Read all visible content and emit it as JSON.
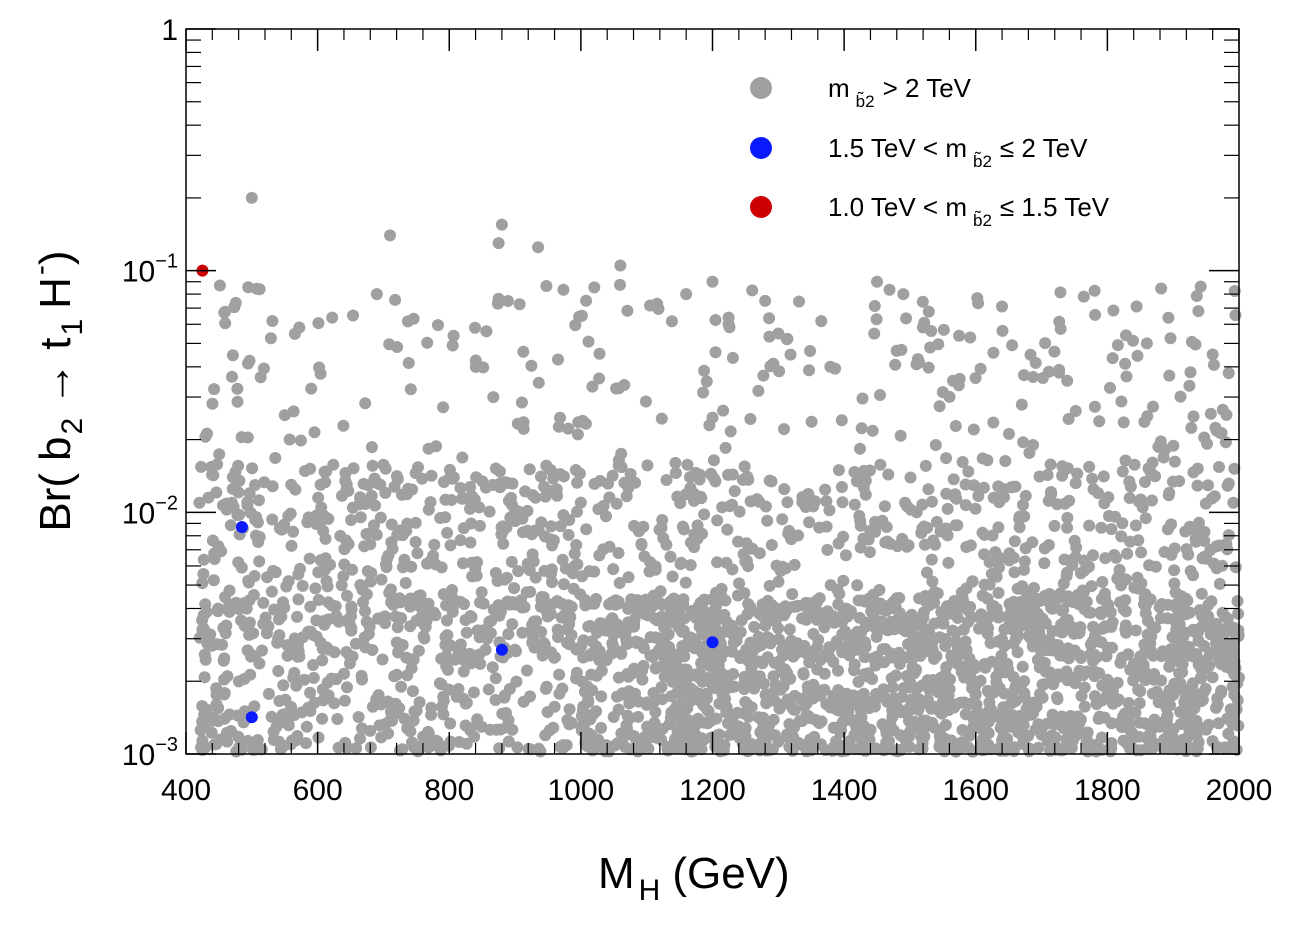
{
  "chart_data": {
    "type": "scatter",
    "x_axis": {
      "title": "M",
      "title_subscript": "H",
      "title_unit": "(GeV)",
      "range": [
        400,
        2000
      ],
      "tick_values": [
        400,
        600,
        800,
        1000,
        1200,
        1400,
        1600,
        1800,
        2000
      ],
      "tick_labels": [
        "400",
        "600",
        "800",
        "1000",
        "1200",
        "1400",
        "1600",
        "1800",
        "2000"
      ],
      "scale": "linear"
    },
    "y_axis": {
      "title": "Br( b̃2 → t̃1 H−)",
      "title_prefix": "Br(",
      "title_b": "b",
      "title_b_sub": "2",
      "title_arrow": "→",
      "title_t": "t",
      "title_t_sub": "1",
      "title_h": "H",
      "title_h_sup": "-",
      "title_suffix": ")",
      "tilde": "~",
      "range": [
        0.001,
        1
      ],
      "scale": "log",
      "tick_labels": [
        {
          "value": 1,
          "base": "1",
          "exp": ""
        },
        {
          "value": 0.1,
          "base": "10",
          "exp": "−1"
        },
        {
          "value": 0.01,
          "base": "10",
          "exp": "−2"
        },
        {
          "value": 0.001,
          "base": "10",
          "exp": "−3"
        }
      ]
    },
    "legend": {
      "position": "top-right",
      "entries": [
        {
          "color": "#a0a0a0",
          "pre": "m",
          "sub": "b̃2",
          "post": "> 2 TeV",
          "label": "m_{b̃2} > 2 TeV"
        },
        {
          "color": "#0a1aff",
          "pre": "1.5 TeV < m",
          "sub": "b̃2",
          "post": "≤ 2 TeV",
          "label": "1.5 TeV < m_{b̃2} ≤ 2 TeV"
        },
        {
          "color": "#cc0000",
          "pre": "1.0 TeV < m",
          "sub": "b̃2",
          "post": "≤ 1.5 TeV",
          "label": "1.0 TeV < m_{b̃2} ≤ 1.5 TeV"
        }
      ]
    },
    "series": [
      {
        "name": "m_b2 > 2 TeV",
        "color": "#a0a0a0",
        "notable_points": [
          {
            "x": 500,
            "y": 0.2
          },
          {
            "x": 880,
            "y": 0.155
          },
          {
            "x": 710,
            "y": 0.14
          },
          {
            "x": 875,
            "y": 0.13
          },
          {
            "x": 935,
            "y": 0.125
          },
          {
            "x": 1060,
            "y": 0.105
          },
          {
            "x": 1200,
            "y": 0.09
          },
          {
            "x": 1450,
            "y": 0.09
          },
          {
            "x": 1490,
            "y": 0.08
          },
          {
            "x": 1160,
            "y": 0.08
          },
          {
            "x": 1280,
            "y": 0.075
          },
          {
            "x": 690,
            "y": 0.08
          },
          {
            "x": 1960,
            "y": 0.045
          },
          {
            "x": 1860,
            "y": 0.05
          }
        ],
        "cloud_description_density": "dense band from 1e-3 to ~1e-2 across x 400-2000, densest above x=1000; sparse points up to ~0.1",
        "generated_count": 3200
      },
      {
        "name": "1.5 TeV < m_b2 <= 2 TeV",
        "color": "#0a1aff",
        "points": [
          {
            "x": 485,
            "y": 0.0087
          },
          {
            "x": 500,
            "y": 0.00142
          },
          {
            "x": 880,
            "y": 0.0027
          },
          {
            "x": 1200,
            "y": 0.0029
          }
        ]
      },
      {
        "name": "1.0 TeV < m_b2 <= 1.5 TeV",
        "color": "#cc0000",
        "points": [
          {
            "x": 425,
            "y": 0.1
          }
        ]
      }
    ]
  }
}
